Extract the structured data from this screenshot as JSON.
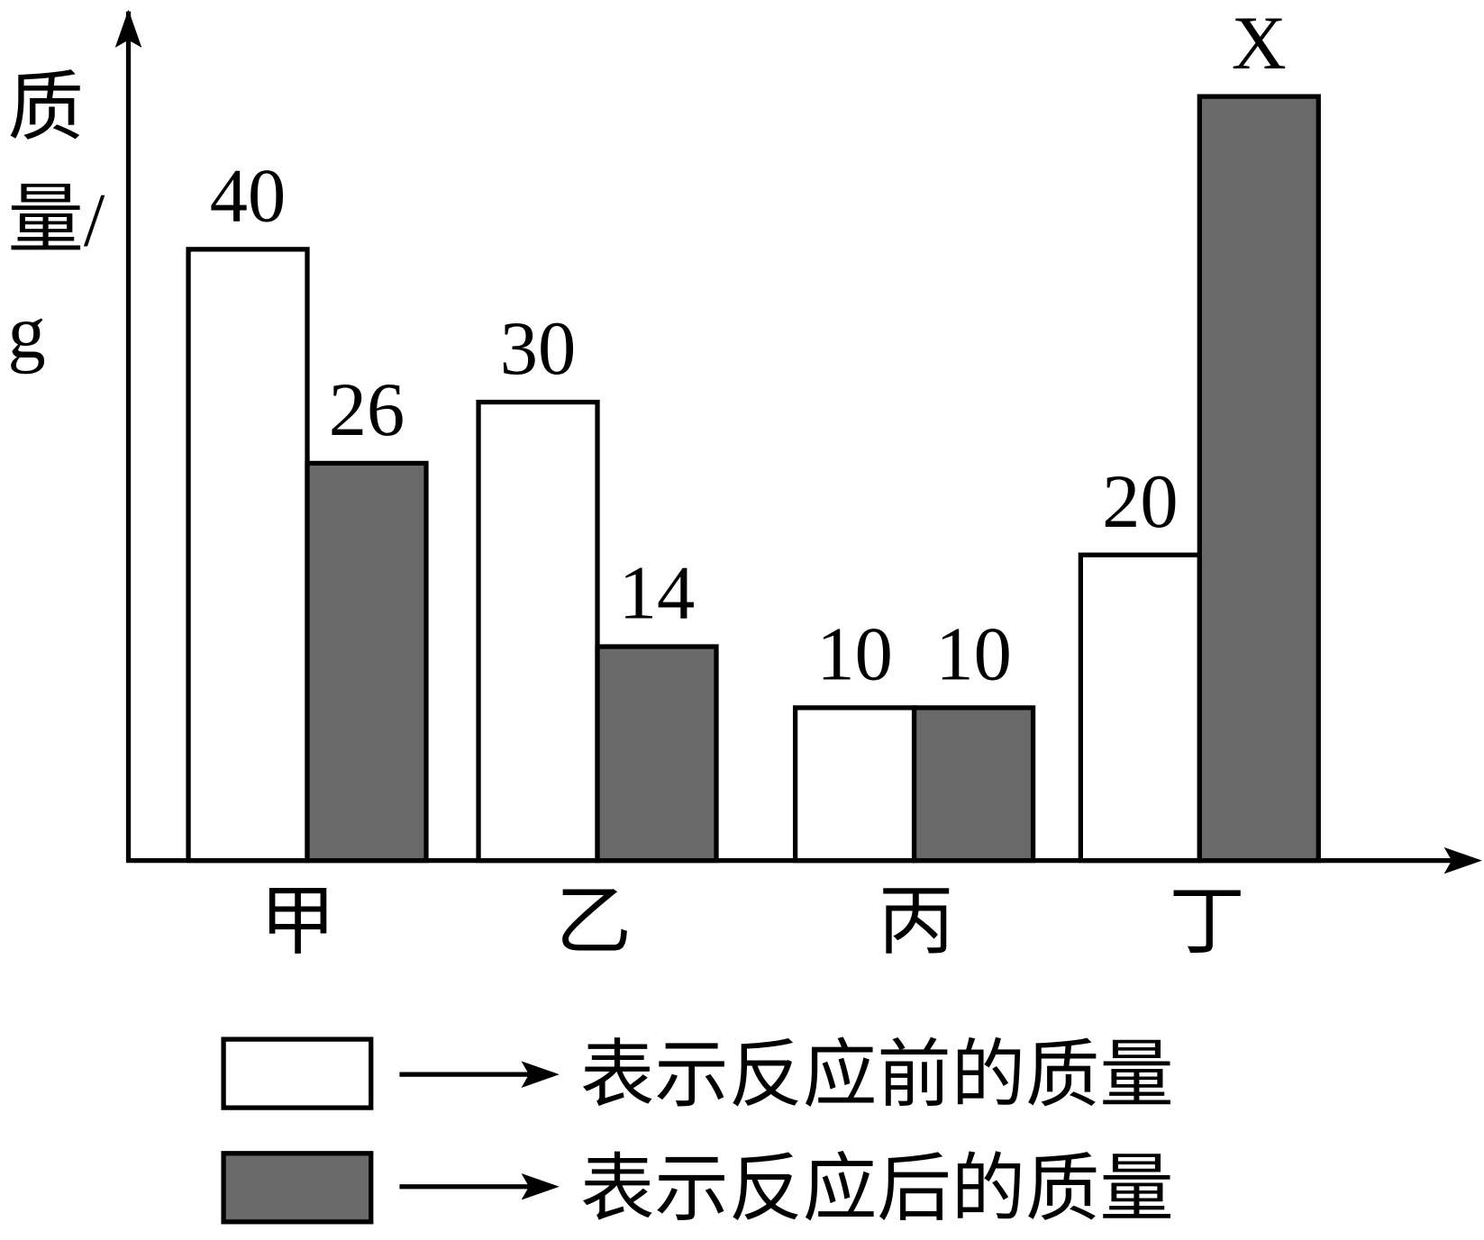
{
  "chart_data": {
    "type": "bar",
    "y_label": "质量/g",
    "categories": [
      "甲",
      "乙",
      "丙",
      "丁"
    ],
    "series": [
      {
        "name": "表示反应前的质量",
        "color": "#ffffff",
        "values": [
          40,
          30,
          10,
          20
        ]
      },
      {
        "name": "表示反应后的质量",
        "color": "#696969",
        "values": [
          26,
          14,
          10,
          50
        ],
        "value_labels": [
          null,
          null,
          null,
          "X"
        ]
      }
    ],
    "ylim": [
      0,
      55
    ]
  }
}
